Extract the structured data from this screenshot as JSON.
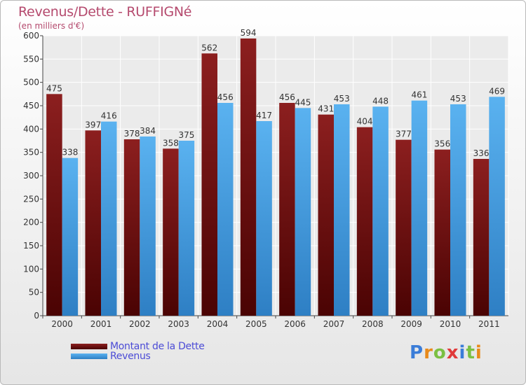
{
  "chart_data": {
    "type": "bar",
    "title": "Revenus/Dette - RUFFIGNé",
    "subtitle": "(en milliers d'€)",
    "xlabel": "",
    "ylabel": "",
    "ylim": [
      0,
      600
    ],
    "yticks": [
      0,
      50,
      100,
      150,
      200,
      250,
      300,
      350,
      400,
      450,
      500,
      550,
      600
    ],
    "grid": true,
    "categories": [
      "2000",
      "2001",
      "2002",
      "2003",
      "2004",
      "2005",
      "2006",
      "2007",
      "2008",
      "2009",
      "2010",
      "2011"
    ],
    "series": [
      {
        "name": "Montant de la Dette",
        "color": "#6b0f0f",
        "values": [
          475,
          397,
          378,
          358,
          562,
          594,
          456,
          431,
          404,
          377,
          356,
          336
        ]
      },
      {
        "name": "Revenus",
        "color": "#4aa3e4",
        "values": [
          338,
          416,
          384,
          375,
          456,
          417,
          445,
          453,
          448,
          461,
          453,
          469
        ]
      }
    ],
    "legend_position": "bottom-left"
  },
  "legend": {
    "dette_label": "Montant de la Dette",
    "revenus_label": "Revenus"
  },
  "logo": {
    "letters": [
      "P",
      "r",
      "o",
      "x",
      "i",
      "t",
      "i"
    ],
    "colors": [
      "#3b7dd8",
      "#e88a1a",
      "#7bc043",
      "#e03a3a",
      "#3b7dd8",
      "#7bc043",
      "#e88a1a"
    ]
  }
}
